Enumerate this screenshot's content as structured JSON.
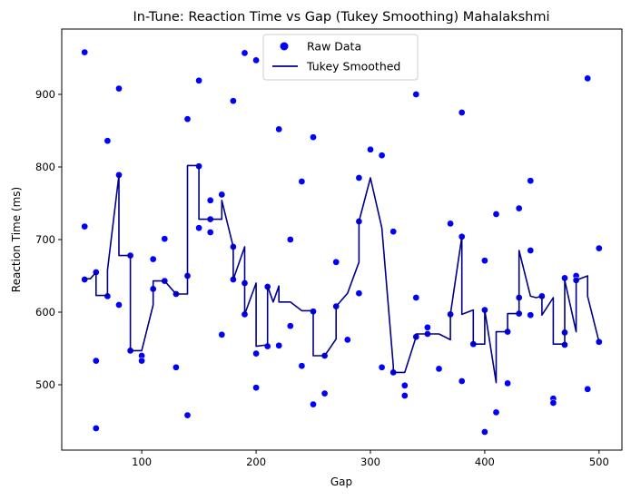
{
  "chart_data": {
    "type": "scatter",
    "title": "In-Tune: Reaction Time vs Gap (Tukey Smoothing) Mahalakshmi",
    "xlabel": "Gap",
    "ylabel": "Reaction Time (ms)",
    "xlim": [
      30,
      520
    ],
    "ylim": [
      410,
      990
    ],
    "x_ticks": [
      100,
      200,
      300,
      400,
      500
    ],
    "y_ticks": [
      500,
      600,
      700,
      800,
      900
    ],
    "grid": false,
    "legend_position": "top-center",
    "colors": {
      "raw": "#0000ff",
      "smoothed": "#00008b"
    },
    "series": [
      {
        "name": "Raw Data",
        "kind": "scatter",
        "points": [
          [
            50,
            958
          ],
          [
            50,
            718
          ],
          [
            50,
            645
          ],
          [
            60,
            655
          ],
          [
            60,
            533
          ],
          [
            60,
            440
          ],
          [
            70,
            836
          ],
          [
            70,
            622
          ],
          [
            80,
            908
          ],
          [
            80,
            789
          ],
          [
            80,
            610
          ],
          [
            90,
            678
          ],
          [
            90,
            547
          ],
          [
            100,
            540
          ],
          [
            100,
            533
          ],
          [
            110,
            673
          ],
          [
            110,
            632
          ],
          [
            120,
            701
          ],
          [
            120,
            643
          ],
          [
            130,
            625
          ],
          [
            130,
            524
          ],
          [
            140,
            866
          ],
          [
            140,
            650
          ],
          [
            140,
            458
          ],
          [
            150,
            919
          ],
          [
            150,
            801
          ],
          [
            150,
            716
          ],
          [
            160,
            754
          ],
          [
            160,
            728
          ],
          [
            160,
            710
          ],
          [
            170,
            762
          ],
          [
            170,
            569
          ],
          [
            180,
            891
          ],
          [
            180,
            690
          ],
          [
            180,
            645
          ],
          [
            190,
            957
          ],
          [
            190,
            640
          ],
          [
            190,
            597
          ],
          [
            200,
            947
          ],
          [
            200,
            543
          ],
          [
            200,
            496
          ],
          [
            210,
            635
          ],
          [
            210,
            553
          ],
          [
            220,
            852
          ],
          [
            220,
            554
          ],
          [
            230,
            700
          ],
          [
            230,
            581
          ],
          [
            240,
            780
          ],
          [
            240,
            526
          ],
          [
            250,
            841
          ],
          [
            250,
            601
          ],
          [
            250,
            473
          ],
          [
            260,
            540
          ],
          [
            260,
            488
          ],
          [
            270,
            669
          ],
          [
            270,
            608
          ],
          [
            280,
            562
          ],
          [
            290,
            785
          ],
          [
            290,
            725
          ],
          [
            290,
            626
          ],
          [
            300,
            824
          ],
          [
            310,
            816
          ],
          [
            310,
            524
          ],
          [
            320,
            711
          ],
          [
            320,
            517
          ],
          [
            330,
            499
          ],
          [
            330,
            485
          ],
          [
            340,
            900
          ],
          [
            340,
            620
          ],
          [
            340,
            566
          ],
          [
            350,
            579
          ],
          [
            350,
            570
          ],
          [
            360,
            522
          ],
          [
            370,
            722
          ],
          [
            370,
            597
          ],
          [
            380,
            875
          ],
          [
            380,
            704
          ],
          [
            380,
            505
          ],
          [
            390,
            556
          ],
          [
            400,
            671
          ],
          [
            400,
            603
          ],
          [
            400,
            435
          ],
          [
            410,
            735
          ],
          [
            410,
            462
          ],
          [
            420,
            573
          ],
          [
            420,
            502
          ],
          [
            430,
            743
          ],
          [
            430,
            620
          ],
          [
            430,
            598
          ],
          [
            440,
            781
          ],
          [
            440,
            685
          ],
          [
            440,
            596
          ],
          [
            450,
            622
          ],
          [
            460,
            481
          ],
          [
            460,
            475
          ],
          [
            470,
            647
          ],
          [
            470,
            572
          ],
          [
            470,
            555
          ],
          [
            480,
            650
          ],
          [
            480,
            644
          ],
          [
            490,
            922
          ],
          [
            490,
            494
          ],
          [
            500,
            688
          ],
          [
            500,
            559
          ]
        ]
      },
      {
        "name": "Tukey Smoothed",
        "kind": "line",
        "points": [
          [
            50,
            646
          ],
          [
            55,
            646
          ],
          [
            60,
            655
          ],
          [
            60,
            623
          ],
          [
            70,
            623
          ],
          [
            70,
            658
          ],
          [
            80,
            789
          ],
          [
            80,
            678
          ],
          [
            90,
            678
          ],
          [
            90,
            547
          ],
          [
            100,
            547
          ],
          [
            110,
            610
          ],
          [
            110,
            643
          ],
          [
            120,
            643
          ],
          [
            125,
            634
          ],
          [
            130,
            625
          ],
          [
            140,
            625
          ],
          [
            140,
            802
          ],
          [
            150,
            802
          ],
          [
            150,
            728
          ],
          [
            160,
            728
          ],
          [
            170,
            728
          ],
          [
            170,
            754
          ],
          [
            180,
            690
          ],
          [
            180,
            645
          ],
          [
            190,
            690
          ],
          [
            190,
            597
          ],
          [
            200,
            640
          ],
          [
            200,
            553
          ],
          [
            210,
            555
          ],
          [
            210,
            636
          ],
          [
            215,
            614
          ],
          [
            220,
            636
          ],
          [
            220,
            614
          ],
          [
            230,
            614
          ],
          [
            240,
            602
          ],
          [
            250,
            602
          ],
          [
            250,
            540
          ],
          [
            260,
            540
          ],
          [
            270,
            563
          ],
          [
            270,
            608
          ],
          [
            280,
            626
          ],
          [
            290,
            669
          ],
          [
            290,
            725
          ],
          [
            300,
            785
          ],
          [
            310,
            716
          ],
          [
            320,
            526
          ],
          [
            320,
            517
          ],
          [
            330,
            517
          ],
          [
            340,
            566
          ],
          [
            340,
            570
          ],
          [
            360,
            570
          ],
          [
            370,
            562
          ],
          [
            370,
            597
          ],
          [
            380,
            704
          ],
          [
            380,
            597
          ],
          [
            390,
            603
          ],
          [
            390,
            556
          ],
          [
            400,
            556
          ],
          [
            400,
            603
          ],
          [
            410,
            503
          ],
          [
            410,
            573
          ],
          [
            420,
            573
          ],
          [
            420,
            598
          ],
          [
            430,
            598
          ],
          [
            430,
            685
          ],
          [
            440,
            622
          ],
          [
            445,
            620
          ],
          [
            450,
            622
          ],
          [
            450,
            596
          ],
          [
            460,
            620
          ],
          [
            460,
            556
          ],
          [
            470,
            556
          ],
          [
            470,
            644
          ],
          [
            480,
            573
          ],
          [
            480,
            644
          ],
          [
            490,
            650
          ],
          [
            490,
            622
          ],
          [
            500,
            559
          ]
        ]
      }
    ]
  }
}
